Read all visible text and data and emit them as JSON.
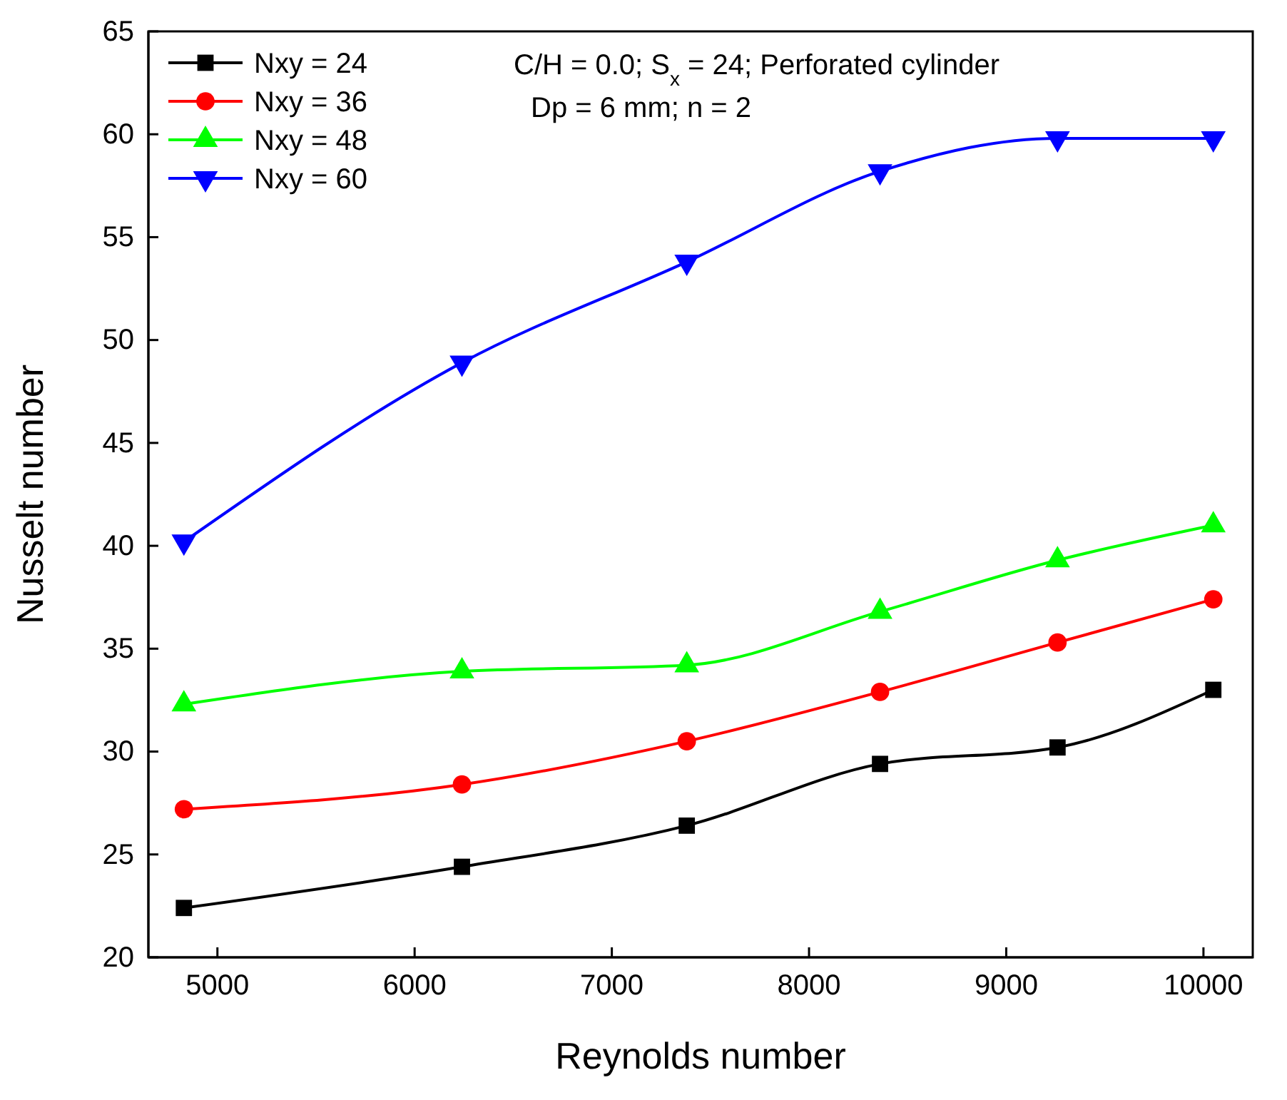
{
  "chart_data": {
    "type": "line",
    "xlabel": "Reynolds number",
    "ylabel": "Nusselt number",
    "x": [
      4830,
      6240,
      7380,
      8360,
      9260,
      10050
    ],
    "xlim": [
      4650,
      10250
    ],
    "xticks": [
      5000,
      6000,
      7000,
      8000,
      9000,
      10000
    ],
    "ylim": [
      20,
      65
    ],
    "yticks": [
      20,
      25,
      30,
      35,
      40,
      45,
      50,
      55,
      60,
      65
    ],
    "grid": false,
    "legend": "top left",
    "line_style": "solid",
    "annotations": [
      "C/H = 0.0; S$_{x}$ =  24; Perforated cylinder",
      "Dp = 6 mm; n = 2"
    ],
    "series": [
      {
        "name": "Nxy = 24",
        "color": "#000000",
        "marker": "square",
        "values": [
          22.4,
          24.4,
          26.4,
          29.4,
          30.2,
          33.0
        ]
      },
      {
        "name": "Nxy = 36",
        "color": "#ff0000",
        "marker": "circle",
        "values": [
          27.2,
          28.4,
          30.5,
          32.9,
          35.3,
          37.4
        ]
      },
      {
        "name": "Nxy = 48",
        "color": "#00ff00",
        "marker": "triangle",
        "values": [
          32.3,
          33.9,
          34.2,
          36.8,
          39.3,
          41.0
        ]
      },
      {
        "name": "Nxy = 60",
        "color": "#0000ff",
        "marker": "triangle-down",
        "values": [
          40.2,
          48.9,
          53.8,
          58.2,
          59.8,
          59.8
        ]
      }
    ]
  }
}
